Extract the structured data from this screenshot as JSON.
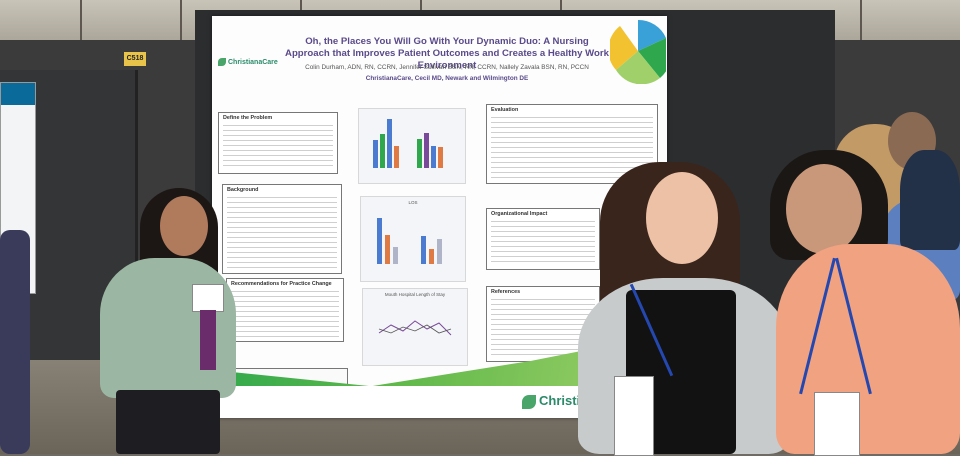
{
  "booth": {
    "sign_code": "C518"
  },
  "poster": {
    "title": "Oh, the Places You Will Go With Your Dynamic Duo: A Nursing Approach that Improves Patient Outcomes and Creates a Healthy Work Environment",
    "authors": "Colin Durham, ADN, RN, CCRN, Jennifer Sullivan BSN, RN, CCRN, Nallely Zavala BSN, RN, PCCN",
    "affiliation": "ChristianaCare, Cecil MD, Newark and Wilmington DE",
    "logo_text": "ChristianaCare",
    "footer_logo_text": "Christi",
    "sections": {
      "define_problem": "Define the Problem",
      "background": "Background",
      "recommendations": "Recommendations for Practice Change",
      "evaluation": "Evaluation",
      "org_impact": "Organizational Impact",
      "references": "References"
    },
    "chart_titles": {
      "chart2": "LOS",
      "chart3": "Mouth Hospital Length of Stay"
    },
    "colors": {
      "accent_purple": "#5a4a8a",
      "brand_green": "#2fa84d",
      "bar_blue": "#4a7bd0",
      "bar_orange": "#e07a44"
    }
  },
  "people": [
    {
      "role": "presenter-left",
      "shirt": "sage green top"
    },
    {
      "role": "presenter-center",
      "top": "black shirt with grey cardigan"
    },
    {
      "role": "presenter-right",
      "shirt": "salmon button-down"
    }
  ]
}
